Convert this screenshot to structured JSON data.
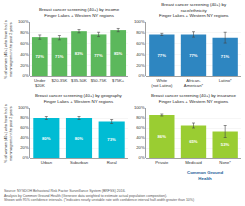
{
  "chart_data": [
    {
      "type": "bar",
      "title": "Breast cancer screening (40+) by income",
      "subtitle": "Finger Lakes + Western NY regions",
      "categories": [
        "Under\n$20K",
        "$20-35K",
        "$35-50K",
        "$50-75K",
        "$75K+"
      ],
      "values": [
        72,
        71,
        83,
        77,
        85
      ],
      "value_labels": [
        "72%",
        "71%",
        "83%",
        "77%",
        "85%"
      ],
      "errors": [
        4,
        4,
        3,
        4,
        3
      ],
      "color": "#5cb85c",
      "ylabel": "% of women (40+) who have had a\nmammogram in the past 2 years",
      "ylim": [
        0,
        100
      ],
      "yticks": [
        {
          "value": 0,
          "label": "0%"
        },
        {
          "value": 20,
          "label": "20%"
        },
        {
          "value": 40,
          "label": "40%"
        },
        {
          "value": 60,
          "label": "60%"
        },
        {
          "value": 80,
          "label": "80%"
        },
        {
          "value": 100,
          "label": "100%"
        }
      ],
      "grid": true,
      "data_labels": true
    },
    {
      "type": "bar",
      "title": "Breast cancer screening (40+) by\nrace/ethnicity",
      "subtitle": "Finger Lakes + Western NY regions",
      "categories": [
        "White\n(not Latino)",
        "African-\nAmerican*",
        "Latino*"
      ],
      "values": [
        77,
        77,
        71
      ],
      "value_labels": [
        "77%",
        "77%",
        "71%"
      ],
      "errors": [
        2,
        5,
        10
      ],
      "color": "#2e86c1",
      "ylim": [
        0,
        100
      ],
      "yticks": [
        {
          "value": 0,
          "label": "0%"
        },
        {
          "value": 20,
          "label": "20%"
        },
        {
          "value": 40,
          "label": "40%"
        },
        {
          "value": 60,
          "label": "60%"
        },
        {
          "value": 80,
          "label": "80%"
        },
        {
          "value": 100,
          "label": "100%"
        }
      ],
      "grid": true,
      "data_labels": true
    },
    {
      "type": "bar",
      "title": "Breast cancer screening (40+) by geography",
      "subtitle": "Finger Lakes + Western NY regions",
      "categories": [
        "Urban",
        "Suburban",
        "Rural"
      ],
      "values": [
        80,
        80,
        73
      ],
      "value_labels": [
        "80%",
        "80%",
        "73%"
      ],
      "errors": [
        3,
        3,
        4
      ],
      "color": "#00bcd4",
      "ylabel": "% of women (40+) who have had a\nmammogram in the past 2 years",
      "ylim": [
        0,
        100
      ],
      "yticks": [
        {
          "value": 0,
          "label": "0%"
        },
        {
          "value": 20,
          "label": "20%"
        },
        {
          "value": 40,
          "label": "40%"
        },
        {
          "value": 60,
          "label": "60%"
        },
        {
          "value": 80,
          "label": "80%"
        },
        {
          "value": 100,
          "label": "100%"
        }
      ],
      "grid": true,
      "data_labels": true
    },
    {
      "type": "bar",
      "title": "Breast cancer screening (40+) by insurance",
      "subtitle": "Finger Lakes + Western NY regions",
      "categories": [
        "Private",
        "Medicaid",
        "None*"
      ],
      "values": [
        86,
        65,
        53
      ],
      "value_labels": [
        "86%",
        "65%",
        "53%"
      ],
      "errors": [
        2,
        5,
        12
      ],
      "color": "#9acd32",
      "ylim": [
        0,
        100
      ],
      "yticks": [
        {
          "value": 0,
          "label": "0%"
        },
        {
          "value": 20,
          "label": "20%"
        },
        {
          "value": 40,
          "label": "40%"
        },
        {
          "value": 60,
          "label": "60%"
        },
        {
          "value": 80,
          "label": "80%"
        },
        {
          "value": 100,
          "label": "100%"
        }
      ],
      "grid": true,
      "data_labels": true
    }
  ],
  "annotations": [
    {
      "text": "Source: NYSDOH Behavioral Risk Factor Surveillance System (BRFSS) 2016.\nAnalysis by Common Ground Health (Genesee data weighted to estimate actual population composition).\nShown with 95% confidence intervals. (*indicates nearly unstable rate with confidence interval half-width greater than 10%)",
      "color": "#555555"
    },
    {
      "text": "Common Ground\nHealth",
      "color": "#1a5a96"
    }
  ]
}
